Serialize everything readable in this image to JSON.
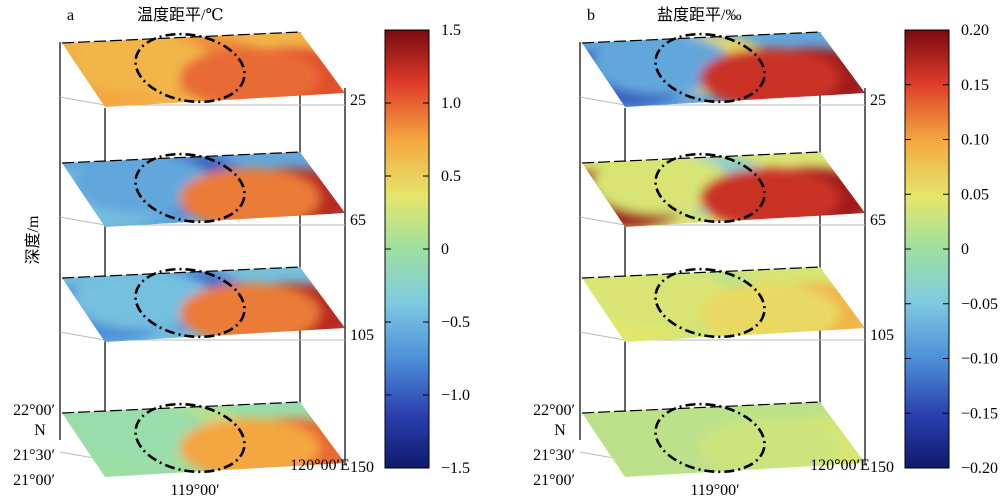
{
  "chart_data": [
    {
      "type": "heatmap",
      "panel_label": "a",
      "title": "温度距平/℃",
      "zlabel": "深度/m",
      "colorbar": {
        "ticks": [
          "1.5",
          "1.0",
          "0.5",
          "0",
          "−0.5",
          "−1.0",
          "−1.5"
        ],
        "tick_values": [
          1.5,
          1.0,
          0.5,
          0,
          -0.5,
          -1.0,
          -1.5
        ],
        "range": [
          -1.5,
          1.5
        ]
      },
      "depths": [
        "25",
        "65",
        "105",
        "150"
      ],
      "x_ticks": [
        "119°00′",
        "120°00′E"
      ],
      "y_ticks": [
        "22°00′",
        "21°30′",
        "21°00′"
      ],
      "ylabel": "N",
      "layers": [
        {
          "depth": 25,
          "pattern": "mostly warm anomaly, around +1.0 to +1.3, strongest in the east"
        },
        {
          "depth": 65,
          "pattern": "cool anomaly inside ellipse near −1.0, warm anomaly east near +1.3"
        },
        {
          "depth": 105,
          "pattern": "cool anomaly about −0.8 in west and ellipse, warm about +1.3 southeast"
        },
        {
          "depth": 150,
          "pattern": "near 0 to +0.3 in west, warm +0.8 to +1.2 northeast"
        }
      ]
    },
    {
      "type": "heatmap",
      "panel_label": "b",
      "title": "盐度距平/‰",
      "colorbar": {
        "ticks": [
          "0.20",
          "0.15",
          "0.10",
          "0.05",
          "0",
          "−0.05",
          "−0.10",
          "−0.15",
          "−0.20"
        ],
        "tick_values": [
          0.2,
          0.15,
          0.1,
          0.05,
          0,
          -0.05,
          -0.1,
          -0.15,
          -0.2
        ],
        "range": [
          -0.2,
          0.2
        ]
      },
      "depths": [
        "25",
        "65",
        "105",
        "150"
      ],
      "x_ticks": [
        "119°00′",
        "120°00′E"
      ],
      "y_ticks": [
        "22°00′",
        "21°30′",
        "21°00′"
      ],
      "ylabel": "N",
      "layers": [
        {
          "depth": 25,
          "pattern": "fresh anomaly about −0.10 in west, salty +0.15 to +0.20 in east"
        },
        {
          "depth": 65,
          "pattern": "salty anomaly about +0.18 north and east, near 0 to −0.10 inside ellipse"
        },
        {
          "depth": 105,
          "pattern": "near 0 to +0.05 with +0.10 in southeast"
        },
        {
          "depth": 150,
          "pattern": "near 0 to +0.03"
        }
      ]
    }
  ]
}
